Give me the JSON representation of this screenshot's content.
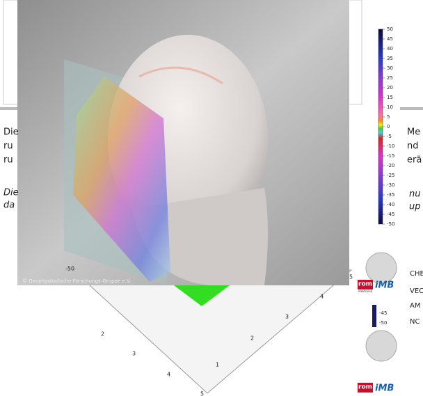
{
  "colorbar": {
    "ticks": [
      50,
      45,
      40,
      35,
      30,
      25,
      20,
      15,
      10,
      5,
      0,
      -5,
      -10,
      -15,
      -20,
      -25,
      -30,
      -35,
      -40,
      -45,
      -50
    ]
  },
  "credit": "© Geophysikalische-Forschungs-Gruppe e.V.",
  "left_text": [
    "Die",
    "ru",
    "ru"
  ],
  "left_italic": [
    "Die",
    "da"
  ],
  "right_text": [
    "Me",
    "nd",
    "erä"
  ],
  "right_italic": [
    "nu",
    "up"
  ],
  "sidebar": {
    "lines": [
      "CHE",
      "VEC",
      "AM",
      "NC"
    ],
    "logos": [
      {
        "brand": "rom",
        "sub": "elektronik",
        "name": "iMB"
      },
      {
        "brand": "rom",
        "name": "iMB"
      }
    ]
  },
  "mini_colorbar": {
    "ticks": [
      -45,
      -50
    ]
  },
  "floor_axes": {
    "left": [
      -50,
      2,
      3,
      4,
      5
    ],
    "right": [
      5,
      4,
      3,
      2,
      1
    ]
  }
}
